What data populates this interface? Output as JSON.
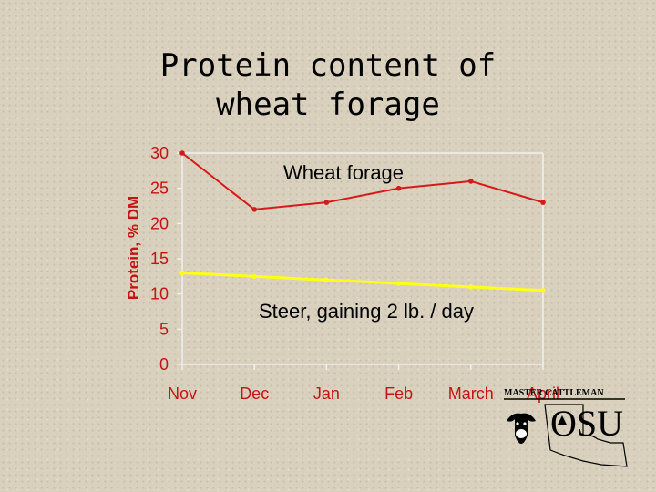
{
  "title_line1": "Protein content of",
  "title_line2": "wheat forage",
  "chart_data": {
    "type": "line",
    "categories": [
      "Nov",
      "Dec",
      "Jan",
      "Feb",
      "March",
      "April"
    ],
    "ylabel": "Protein, % DM",
    "ylim": [
      0,
      30
    ],
    "yticks": [
      0,
      5,
      10,
      15,
      20,
      25,
      30
    ],
    "grid": false,
    "series": [
      {
        "name": "Wheat forage",
        "values": [
          30,
          22,
          23,
          25,
          26,
          23
        ],
        "color": "#d61a1a"
      },
      {
        "name": "Steer, gaining 2 lb. / day",
        "values": [
          13,
          12.5,
          12,
          11.5,
          11,
          10.5
        ],
        "color": "#ffff1a"
      }
    ]
  },
  "logo": {
    "top_text": "MASTER CATTLEMAN",
    "mark": "OSU",
    "colors": {
      "ink": "#000000"
    }
  }
}
